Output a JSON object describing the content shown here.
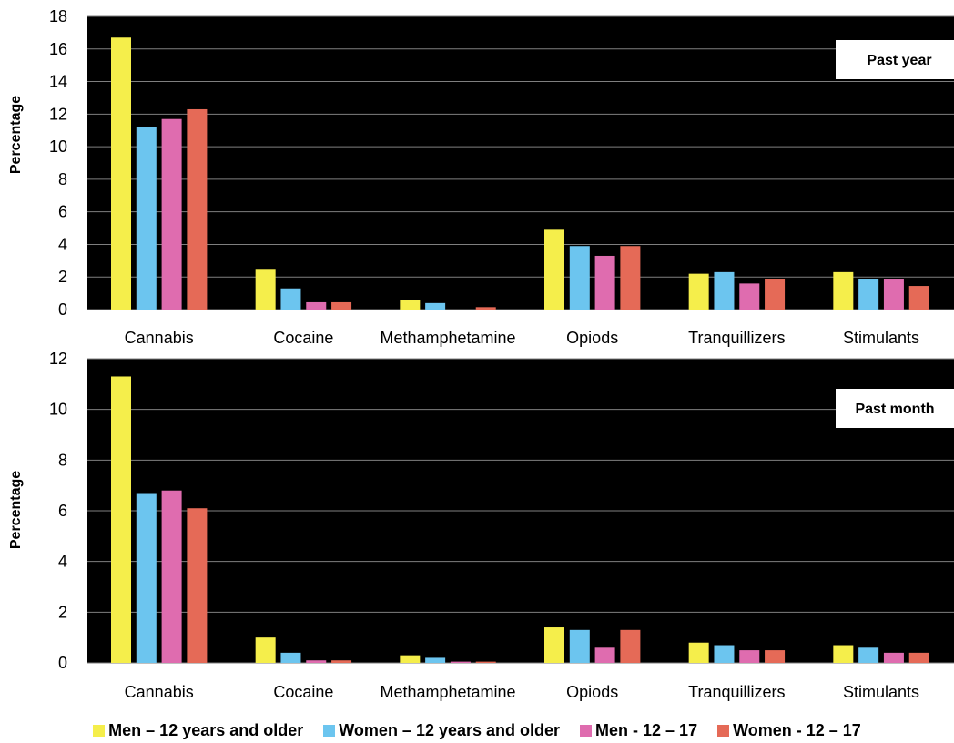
{
  "chart_data": [
    {
      "type": "bar",
      "badge": "Past year",
      "ylabel": "Percentage",
      "ylim": [
        0,
        18
      ],
      "yticks": [
        0,
        2,
        4,
        6,
        8,
        10,
        12,
        14,
        16,
        18
      ],
      "grid": true,
      "categories": [
        "Cannabis",
        "Cocaine",
        "Methamphetamine",
        "Opiods",
        "Tranquillizers",
        "Stimulants"
      ],
      "series": [
        {
          "name": "Men – 12 years and older",
          "color": "#f5ee4b",
          "values": [
            16.7,
            2.5,
            0.6,
            4.9,
            2.2,
            2.3
          ]
        },
        {
          "name": "Women – 12 years and older",
          "color": "#6cc5ef",
          "values": [
            11.2,
            1.3,
            0.4,
            3.9,
            2.3,
            1.9
          ]
        },
        {
          "name": "Men - 12 – 17",
          "color": "#df6caf",
          "values": [
            11.7,
            0.45,
            0.0,
            3.3,
            1.6,
            1.9
          ]
        },
        {
          "name": "Women - 12 – 17",
          "color": "#e56a57",
          "values": [
            12.3,
            0.45,
            0.15,
            3.9,
            1.9,
            1.45
          ]
        }
      ]
    },
    {
      "type": "bar",
      "badge": "Past month",
      "ylabel": "Percentage",
      "ylim": [
        0,
        12
      ],
      "yticks": [
        0,
        2,
        4,
        6,
        8,
        10,
        12
      ],
      "grid": true,
      "categories": [
        "Cannabis",
        "Cocaine",
        "Methamphetamine",
        "Opiods",
        "Tranquillizers",
        "Stimulants"
      ],
      "series": [
        {
          "name": "Men – 12 years and older",
          "color": "#f5ee4b",
          "values": [
            11.3,
            1.0,
            0.3,
            1.4,
            0.8,
            0.7
          ]
        },
        {
          "name": "Women – 12 years and older",
          "color": "#6cc5ef",
          "values": [
            6.7,
            0.4,
            0.2,
            1.3,
            0.7,
            0.6
          ]
        },
        {
          "name": "Men - 12 – 17",
          "color": "#df6caf",
          "values": [
            6.8,
            0.1,
            0.05,
            0.6,
            0.5,
            0.4
          ]
        },
        {
          "name": "Women - 12 – 17",
          "color": "#e56a57",
          "values": [
            6.1,
            0.1,
            0.05,
            1.3,
            0.5,
            0.4
          ]
        }
      ]
    }
  ],
  "legend": [
    {
      "label": "Men – 12 years and older",
      "color": "#f5ee4b"
    },
    {
      "label": "Women – 12 years and older",
      "color": "#6cc5ef"
    },
    {
      "label": "Men - 12 – 17",
      "color": "#df6caf"
    },
    {
      "label": "Women - 12 – 17",
      "color": "#e56a57"
    }
  ]
}
